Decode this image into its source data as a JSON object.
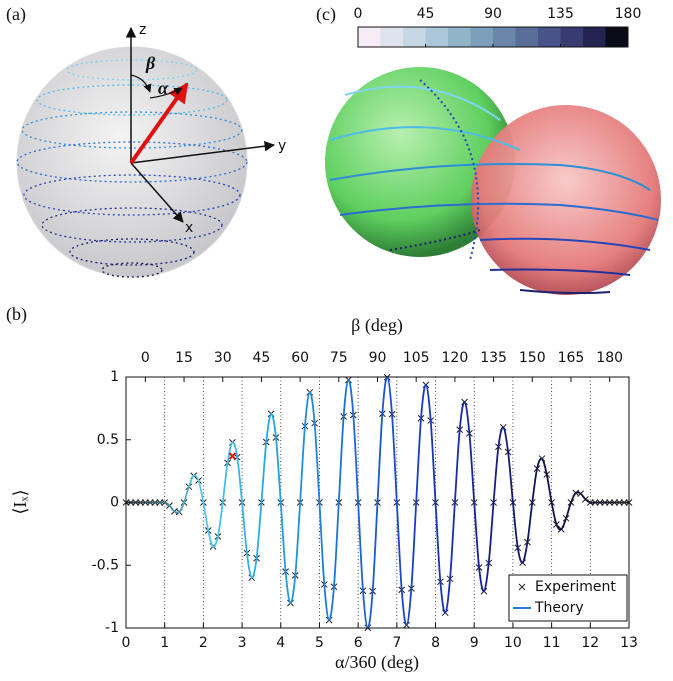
{
  "panel_a": {
    "label": "(a)",
    "axis_labels": [
      "z",
      "y",
      "x"
    ],
    "angle_labels": [
      "β",
      "α"
    ]
  },
  "panel_c": {
    "label": "(c)",
    "colorbar": {
      "lim": [
        0,
        180
      ],
      "ticks": [
        0,
        45,
        90,
        135,
        180
      ],
      "colors": [
        "#f6ecf6",
        "#dfe2ef",
        "#c7d7e6",
        "#abc7d9",
        "#91b4c9",
        "#7ca0bb",
        "#6a87a9",
        "#586d98",
        "#485489",
        "#373b72",
        "#23244f",
        "#0a0a18"
      ]
    }
  },
  "chart_data": {
    "type": "line",
    "panel_label": "(b)",
    "xlabel": "α/360 (deg)",
    "ylabel": "⟨Iₓ⟩",
    "top_label": "β (deg)",
    "xlim": [
      0,
      13
    ],
    "xticks": [
      0,
      1,
      2,
      3,
      4,
      5,
      6,
      7,
      8,
      9,
      10,
      11,
      12,
      13
    ],
    "ylim": [
      -1,
      1
    ],
    "yticks": [
      -1,
      -0.5,
      0,
      0.5,
      1
    ],
    "x2lim": [
      -7.5,
      187.5
    ],
    "x2ticks": [
      0,
      15,
      30,
      45,
      60,
      75,
      90,
      105,
      120,
      135,
      150,
      165,
      180
    ],
    "dotted_lines_x": [
      1,
      2,
      3,
      4,
      5,
      6,
      7,
      8,
      9,
      10,
      11,
      12
    ],
    "legend": "lower right",
    "x": [
      0,
      0.125,
      0.25,
      0.375,
      0.5,
      0.625,
      0.75,
      0.875,
      1,
      1.125,
      1.25,
      1.375,
      1.5,
      1.625,
      1.75,
      1.875,
      2,
      2.125,
      2.25,
      2.375,
      2.5,
      2.625,
      2.75,
      2.875,
      3,
      3.125,
      3.25,
      3.375,
      3.5,
      3.625,
      3.75,
      3.875,
      4,
      4.125,
      4.25,
      4.375,
      4.5,
      4.625,
      4.75,
      4.875,
      5,
      5.125,
      5.25,
      5.375,
      5.5,
      5.625,
      5.75,
      5.875,
      6,
      6.125,
      6.25,
      6.375,
      6.5,
      6.625,
      6.75,
      6.875,
      7,
      7.125,
      7.25,
      7.375,
      7.5,
      7.625,
      7.75,
      7.875,
      8,
      8.125,
      8.25,
      8.375,
      8.5,
      8.625,
      8.75,
      8.875,
      9,
      9.125,
      9.25,
      9.375,
      9.5,
      9.625,
      9.75,
      9.875,
      10,
      10.125,
      10.25,
      10.375,
      10.5,
      10.625,
      10.75,
      10.875,
      11,
      11.125,
      11.25,
      11.375,
      11.5,
      11.625,
      11.75,
      11.875,
      12,
      12.125,
      12.25,
      12.375,
      12.5,
      12.625,
      12.75,
      12.875,
      13
    ],
    "series": [
      {
        "name": "Experiment",
        "color": "#222222",
        "marker": "x",
        "values": [
          0,
          0,
          0,
          0,
          0,
          0,
          0,
          0,
          0,
          -0.025,
          -0.071,
          -0.076,
          0,
          0.126,
          0.213,
          0.175,
          0,
          -0.223,
          -0.35,
          -0.271,
          0,
          0.316,
          0.479,
          0.361,
          0,
          -0.403,
          -0.599,
          -0.444,
          0,
          0.482,
          0.707,
          0.518,
          0,
          -0.551,
          -0.801,
          -0.581,
          0,
          0.608,
          0.878,
          0.632,
          0,
          -0.653,
          -0.937,
          -0.671,
          0,
          0.685,
          0.977,
          0.696,
          0,
          -0.703,
          -0.998,
          -0.707,
          0,
          0.707,
          0.998,
          0.703,
          0,
          -0.696,
          -0.977,
          -0.685,
          0,
          0.671,
          0.937,
          0.653,
          0,
          -0.632,
          -0.878,
          -0.608,
          0,
          0.581,
          0.801,
          0.551,
          0,
          -0.518,
          -0.707,
          -0.482,
          0,
          0.444,
          0.599,
          0.403,
          0,
          -0.361,
          -0.479,
          -0.316,
          0,
          0.271,
          0.35,
          0.223,
          0,
          -0.175,
          -0.213,
          -0.126,
          0,
          0.076,
          0.071,
          0.025,
          0,
          0,
          0,
          0,
          0,
          0,
          0,
          0,
          0
        ]
      },
      {
        "name": "Theory",
        "color": "#2a7fd4",
        "gradient": [
          "#222222",
          "#5ccaee",
          "#22a8e0",
          "#1f6fd8",
          "#1a3ec8",
          "#16208e",
          "#101040",
          "#222222"
        ],
        "values": [
          0,
          0,
          0,
          0,
          0,
          0,
          0,
          0,
          0,
          -0.025,
          -0.071,
          -0.076,
          0,
          0.126,
          0.213,
          0.175,
          0,
          -0.223,
          -0.35,
          -0.271,
          0,
          0.316,
          0.479,
          0.361,
          0,
          -0.403,
          -0.599,
          -0.444,
          0,
          0.482,
          0.707,
          0.518,
          0,
          -0.551,
          -0.801,
          -0.581,
          0,
          0.608,
          0.878,
          0.632,
          0,
          -0.653,
          -0.937,
          -0.671,
          0,
          0.685,
          0.977,
          0.696,
          0,
          -0.703,
          -0.998,
          -0.707,
          0,
          0.707,
          0.998,
          0.703,
          0,
          -0.696,
          -0.977,
          -0.685,
          0,
          0.671,
          0.937,
          0.653,
          0,
          -0.632,
          -0.878,
          -0.608,
          0,
          0.581,
          0.801,
          0.551,
          0,
          -0.518,
          -0.707,
          -0.482,
          0,
          0.444,
          0.599,
          0.403,
          0,
          -0.361,
          -0.479,
          -0.316,
          0,
          0.271,
          0.35,
          0.223,
          0,
          -0.175,
          -0.213,
          -0.126,
          0,
          0.076,
          0.071,
          0.025,
          0,
          0,
          0,
          0,
          0,
          0,
          0,
          0,
          0
        ]
      }
    ],
    "highlight": {
      "x": 2.75,
      "y": 0.37,
      "color": "#e01010"
    }
  }
}
